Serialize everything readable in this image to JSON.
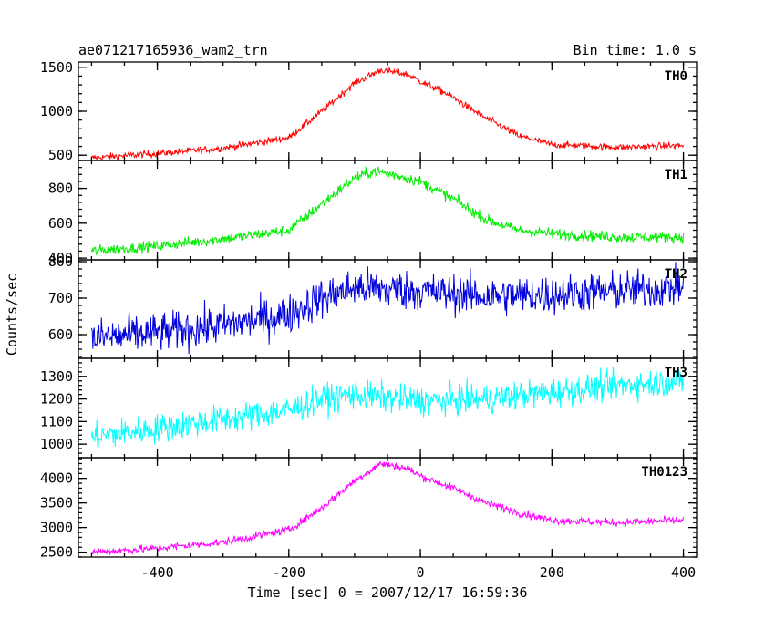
{
  "chart_data": {
    "type": "line",
    "title_left": "ae071217165936_wam2_trn",
    "title_right": "Bin time: 1.0 s",
    "xlabel": "Time [sec] 0 = 2007/12/17 16:59:36",
    "ylabel": "Counts/sec",
    "xlim": [
      -520,
      420
    ],
    "xticks": [
      -400,
      -200,
      0,
      200,
      400
    ],
    "panels": [
      {
        "name": "TH0",
        "color": "#ff0000",
        "ylim": [
          440,
          1560
        ],
        "yticks": [
          500,
          1000,
          1500
        ],
        "noise": 28,
        "profile": [
          [
            -500,
            470
          ],
          [
            -400,
            520
          ],
          [
            -300,
            580
          ],
          [
            -200,
            700
          ],
          [
            -150,
            1000
          ],
          [
            -100,
            1320
          ],
          [
            -60,
            1470
          ],
          [
            -20,
            1420
          ],
          [
            0,
            1340
          ],
          [
            40,
            1200
          ],
          [
            100,
            920
          ],
          [
            150,
            720
          ],
          [
            200,
            620
          ],
          [
            300,
            590
          ],
          [
            400,
            610
          ]
        ]
      },
      {
        "name": "TH1",
        "color": "#00ee00",
        "ylim": [
          390,
          960
        ],
        "yticks": [
          400,
          600,
          800
        ],
        "noise": 22,
        "profile": [
          [
            -500,
            440
          ],
          [
            -400,
            470
          ],
          [
            -300,
            510
          ],
          [
            -200,
            560
          ],
          [
            -150,
            710
          ],
          [
            -100,
            860
          ],
          [
            -70,
            900
          ],
          [
            -30,
            870
          ],
          [
            0,
            840
          ],
          [
            50,
            740
          ],
          [
            100,
            620
          ],
          [
            150,
            560
          ],
          [
            200,
            540
          ],
          [
            300,
            520
          ],
          [
            400,
            520
          ]
        ]
      },
      {
        "name": "TH2",
        "color": "#0000dd",
        "ylim": [
          535,
          805
        ],
        "yticks": [
          600,
          700,
          800
        ],
        "noise": 38,
        "profile": [
          [
            -500,
            590
          ],
          [
            -400,
            605
          ],
          [
            -300,
            625
          ],
          [
            -200,
            655
          ],
          [
            -150,
            700
          ],
          [
            -100,
            730
          ],
          [
            0,
            720
          ],
          [
            100,
            705
          ],
          [
            200,
            710
          ],
          [
            300,
            720
          ],
          [
            400,
            730
          ]
        ]
      },
      {
        "name": "TH3",
        "color": "#00ffff",
        "ylim": [
          940,
          1380
        ],
        "yticks": [
          1000,
          1100,
          1200,
          1300
        ],
        "noise": 45,
        "profile": [
          [
            -500,
            1030
          ],
          [
            -400,
            1070
          ],
          [
            -300,
            1110
          ],
          [
            -200,
            1150
          ],
          [
            -150,
            1200
          ],
          [
            -100,
            1220
          ],
          [
            0,
            1190
          ],
          [
            100,
            1200
          ],
          [
            200,
            1230
          ],
          [
            300,
            1260
          ],
          [
            400,
            1280
          ]
        ]
      },
      {
        "name": "TH0123",
        "color": "#ff00ff",
        "ylim": [
          2400,
          4420
        ],
        "yticks": [
          2500,
          3000,
          3500,
          4000
        ],
        "noise": 55,
        "profile": [
          [
            -500,
            2500
          ],
          [
            -400,
            2580
          ],
          [
            -300,
            2700
          ],
          [
            -200,
            2950
          ],
          [
            -150,
            3400
          ],
          [
            -100,
            3950
          ],
          [
            -60,
            4300
          ],
          [
            -20,
            4200
          ],
          [
            0,
            4050
          ],
          [
            50,
            3800
          ],
          [
            100,
            3500
          ],
          [
            150,
            3300
          ],
          [
            200,
            3150
          ],
          [
            300,
            3100
          ],
          [
            400,
            3150
          ]
        ]
      }
    ]
  }
}
